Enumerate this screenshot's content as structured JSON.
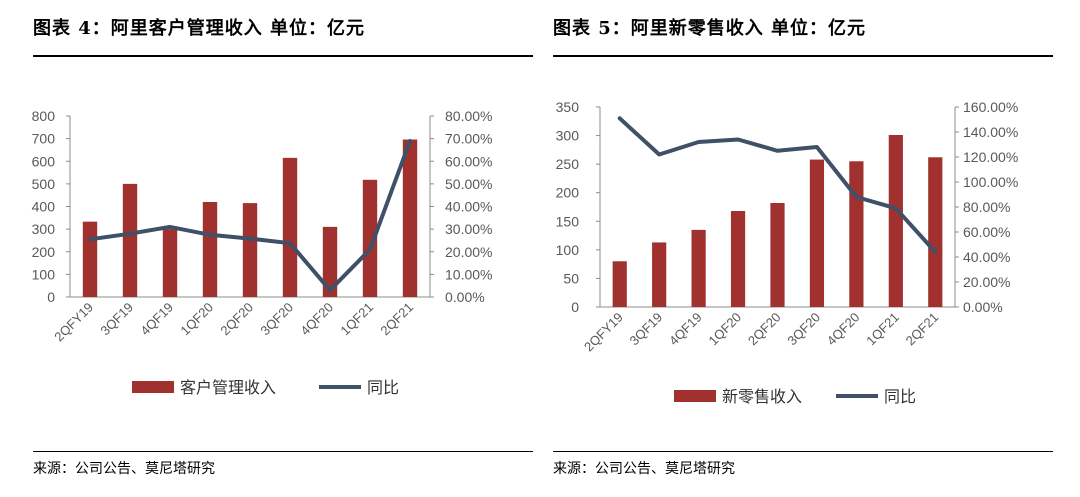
{
  "panels": [
    {
      "title": "图表 4：阿里客户管理收入  单位：亿元",
      "source": "来源：公司公告、莫尼塔研究",
      "chart_data": {
        "type": "bar+line",
        "categories": [
          "2QFY19",
          "3QF19",
          "4QF19",
          "1QF20",
          "2QF20",
          "3QF20",
          "4QF20",
          "1QF21",
          "2QF21"
        ],
        "series": [
          {
            "name": "客户管理收入",
            "kind": "bar",
            "axis": "left",
            "color": "#a0312e",
            "values": [
              333,
              500,
              300,
              420,
              415,
              615,
              310,
              518,
              696
            ]
          },
          {
            "name": "同比",
            "kind": "line",
            "axis": "right",
            "color": "#3f5068",
            "values": [
              25.5,
              28.0,
              31.0,
              27.5,
              25.8,
              23.8,
              3.0,
              21.0,
              69.0
            ]
          }
        ],
        "left_axis": {
          "min": 0,
          "max": 800,
          "step": 100,
          "ticks": [
            "0",
            "100",
            "200",
            "300",
            "400",
            "500",
            "600",
            "700",
            "800"
          ]
        },
        "right_axis": {
          "min": 0,
          "max": 80,
          "step": 10,
          "ticks": [
            "0.00%",
            "10.00%",
            "20.00%",
            "30.00%",
            "40.00%",
            "50.00%",
            "60.00%",
            "70.00%",
            "80.00%"
          ]
        },
        "legend": [
          "客户管理收入",
          "同比"
        ],
        "legend_position": "bottom",
        "grid": false
      }
    },
    {
      "title": "图表 5：阿里新零售收入  单位：亿元",
      "source": "来源：公司公告、莫尼塔研究",
      "chart_data": {
        "type": "bar+line",
        "categories": [
          "2QFY19",
          "3QF19",
          "4QF19",
          "1QF20",
          "2QF20",
          "3QF20",
          "4QF20",
          "1QF21",
          "2QF21"
        ],
        "series": [
          {
            "name": "新零售收入",
            "kind": "bar",
            "axis": "left",
            "color": "#a0312e",
            "values": [
              80,
              113,
              135,
              168,
              182,
              258,
              255,
              301,
              262
            ]
          },
          {
            "name": "同比",
            "kind": "line",
            "axis": "right",
            "color": "#3f5068",
            "values": [
              151,
              122,
              132,
              134,
              125,
              128,
              88,
              79,
              44
            ]
          }
        ],
        "left_axis": {
          "min": 0,
          "max": 350,
          "step": 50,
          "ticks": [
            "0",
            "50",
            "100",
            "150",
            "200",
            "250",
            "300",
            "350"
          ]
        },
        "right_axis": {
          "min": 0,
          "max": 160,
          "step": 20,
          "ticks": [
            "0.00%",
            "20.00%",
            "40.00%",
            "60.00%",
            "80.00%",
            "100.00%",
            "120.00%",
            "140.00%",
            "160.00%"
          ]
        },
        "legend": [
          "新零售收入",
          "同比"
        ],
        "legend_position": "bottom",
        "grid": false
      }
    }
  ]
}
